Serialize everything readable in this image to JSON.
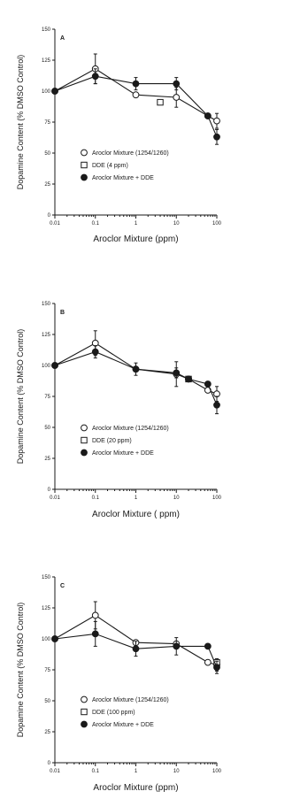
{
  "chart_data": [
    {
      "type": "line",
      "panel": "A",
      "xscale": "log",
      "xlim": [
        0.01,
        100
      ],
      "ylim": [
        0,
        150
      ],
      "xticks": [
        "0.01",
        "0.1",
        "1",
        "10",
        "100"
      ],
      "yticks": [
        "0",
        "25",
        "50",
        "75",
        "100",
        "125",
        "150"
      ],
      "xlabel": "Aroclor Mixture  (ppm)",
      "ylabel": "Dopamine Content (% DMSO Control)",
      "legend": [
        "Aroclor Mixture (1254/1260)",
        "DDE (4 ppm)",
        "Aroclor Mixture + DDE"
      ],
      "series": [
        {
          "name": "Aroclor Mixture (1254/1260)",
          "marker": "open-circle",
          "x": [
            0.01,
            0.1,
            1,
            10,
            60,
            100
          ],
          "y": [
            100,
            118,
            97,
            95,
            80,
            76
          ],
          "err": [
            0,
            12,
            0,
            8,
            0,
            6
          ]
        },
        {
          "name": "DDE (4 ppm)",
          "marker": "open-square",
          "x": [
            4
          ],
          "y": [
            91
          ],
          "err": [
            0
          ]
        },
        {
          "name": "Aroclor Mixture + DDE",
          "marker": "filled-circle",
          "x": [
            0.01,
            0.1,
            1,
            10,
            60,
            100
          ],
          "y": [
            100,
            112,
            106,
            106,
            80,
            63
          ],
          "err": [
            0,
            6,
            5,
            5,
            0,
            6
          ]
        }
      ]
    },
    {
      "type": "line",
      "panel": "B",
      "xscale": "log",
      "xlim": [
        0.01,
        100
      ],
      "ylim": [
        0,
        150
      ],
      "xticks": [
        "0.01",
        "0.1",
        "1",
        "10",
        "100"
      ],
      "yticks": [
        "0",
        "25",
        "50",
        "75",
        "100",
        "125",
        "150"
      ],
      "xlabel": "Aroclor Mixture  ( ppm)",
      "ylabel": "Dopamine Content (% DMSO Control)",
      "legend": [
        "Aroclor Mixture (1254/1260)",
        "DDE (20 ppm)",
        "Aroclor Mixture + DDE"
      ],
      "series": [
        {
          "name": "Aroclor Mixture (1254/1260)",
          "marker": "open-circle",
          "x": [
            0.01,
            0.1,
            1,
            10,
            20,
            60,
            100
          ],
          "y": [
            100,
            118,
            97,
            93,
            89,
            80,
            77
          ],
          "err": [
            0,
            10,
            0,
            10,
            0,
            0,
            6
          ]
        },
        {
          "name": "DDE (20 ppm)",
          "marker": "open-square",
          "x": [
            20
          ],
          "y": [
            89
          ],
          "err": [
            0
          ]
        },
        {
          "name": "Aroclor Mixture + DDE",
          "marker": "filled-circle",
          "x": [
            0.01,
            0.1,
            1,
            10,
            20,
            60,
            100
          ],
          "y": [
            100,
            111,
            97,
            94,
            89,
            85,
            68
          ],
          "err": [
            0,
            5,
            5,
            4,
            0,
            0,
            7
          ]
        }
      ]
    },
    {
      "type": "line",
      "panel": "C",
      "xscale": "log",
      "xlim": [
        0.01,
        100
      ],
      "ylim": [
        0,
        150
      ],
      "xticks": [
        "0.01",
        "0.1",
        "1",
        "10",
        "100"
      ],
      "yticks": [
        "0",
        "25",
        "50",
        "75",
        "100",
        "125",
        "150"
      ],
      "xlabel": "Aroclor Mixture (ppm)",
      "ylabel": "Dopamine Content (% DMSO Control)",
      "legend": [
        "Aroclor Mixture (1254/1260)",
        "DDE (100 ppm)",
        "Aroclor Mixture + DDE"
      ],
      "series": [
        {
          "name": "Aroclor Mixture (1254/1260)",
          "marker": "open-circle",
          "x": [
            0.01,
            0.1,
            1,
            10,
            60,
            100
          ],
          "y": [
            100,
            119,
            97,
            96,
            81,
            79
          ],
          "err": [
            0,
            11,
            0,
            0,
            0,
            5
          ]
        },
        {
          "name": "DDE (100 ppm)",
          "marker": "open-square",
          "x": [
            100
          ],
          "y": [
            81
          ],
          "err": [
            0
          ]
        },
        {
          "name": "Aroclor Mixture + DDE",
          "marker": "filled-circle",
          "x": [
            0.01,
            0.1,
            1,
            10,
            60,
            100
          ],
          "y": [
            100,
            104,
            92,
            94,
            94,
            77
          ],
          "err": [
            0,
            10,
            6,
            7,
            0,
            5
          ]
        }
      ]
    }
  ]
}
